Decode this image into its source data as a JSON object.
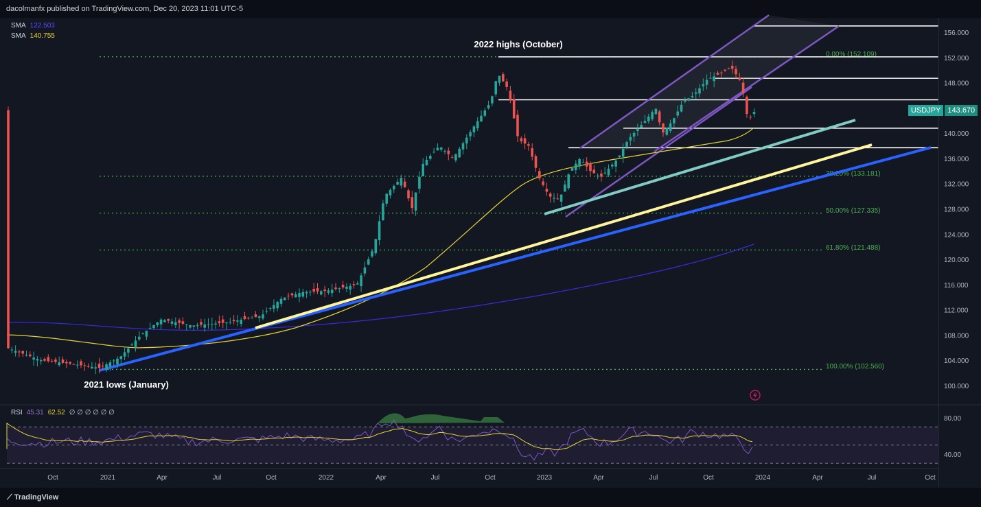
{
  "header": {
    "byline": "dacolmanfx published on TradingView.com, Dec 20, 2023 11:01 UTC-5"
  },
  "legend": {
    "sma1": {
      "label": "SMA",
      "value": "122.503",
      "color": "#3b2bd6"
    },
    "sma2": {
      "label": "SMA",
      "value": "140.755",
      "color": "#e6d33a"
    },
    "rsi": {
      "label": "RSI",
      "value1": "45.31",
      "value2": "62.52",
      "extras": "∅ ∅ ∅ ∅ ∅ ∅"
    }
  },
  "annotations": {
    "highs": "2022 highs (October)",
    "lows": "2021 lows (January)"
  },
  "ticker": {
    "symbol": "USDJPY",
    "price": "143.670"
  },
  "footer": {
    "brand": "TradingView"
  },
  "chart_data": {
    "type": "candlestick",
    "symbol": "USDJPY",
    "price_axis": {
      "range": [
        98,
        158
      ],
      "ticks": [
        "156.000",
        "152.000",
        "148.000",
        "144.000",
        "140.000",
        "136.000",
        "132.000",
        "128.000",
        "124.000",
        "120.000",
        "116.000",
        "112.000",
        "108.000",
        "104.000",
        "100.000"
      ]
    },
    "time_axis": {
      "ticks": [
        "Oct",
        "2021",
        "Apr",
        "Jul",
        "Oct",
        "2022",
        "Apr",
        "Jul",
        "Oct",
        "2023",
        "Apr",
        "Jul",
        "Oct",
        "2024",
        "Apr",
        "Jul",
        "Oct"
      ]
    },
    "fibonacci": [
      {
        "label": "0.00% (152.109)",
        "price": 152.109
      },
      {
        "label": "38.20% (133.181)",
        "price": 133.181
      },
      {
        "label": "50.00% (127.335)",
        "price": 127.335
      },
      {
        "label": "61.80% (121.488)",
        "price": 121.488
      },
      {
        "label": "100.00% (102.560)",
        "price": 102.56
      }
    ],
    "horizontal_levels": [
      157.0,
      152.1,
      148.7,
      145.3,
      140.8,
      137.7
    ],
    "sma_values": {
      "sma_long": 122.503,
      "sma_short": 140.755
    },
    "last_price": 143.67,
    "rsi": {
      "value": 45.31,
      "signal": 62.52,
      "levels": [
        70,
        50,
        30
      ],
      "axis_ticks": [
        "80.00",
        "40.00"
      ]
    },
    "colors": {
      "up": "#26a69a",
      "down": "#ef5350",
      "fib": "#4caf50",
      "channel": "#7e57c2",
      "trend_blue": "#2962ff",
      "trend_yellow": "#fff59d",
      "trend_teal": "#80cbc4"
    }
  }
}
